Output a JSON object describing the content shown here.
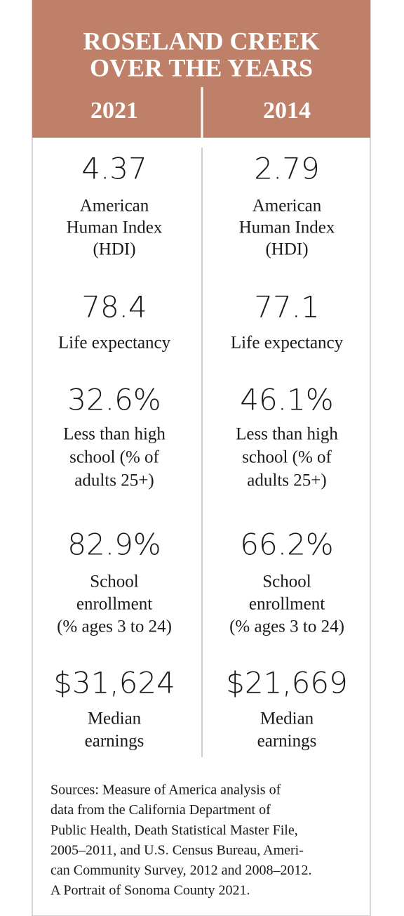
{
  "header": {
    "title": [
      "ROSELAND CREEK",
      "OVER THE YEARS"
    ]
  },
  "columns": [
    {
      "year": "2021",
      "stats": [
        {
          "value": "4.37",
          "label": [
            "American",
            "Human Index",
            "(HDI)"
          ]
        },
        {
          "value": "78.4",
          "label": [
            "Life expectancy"
          ]
        },
        {
          "value": "32.6%",
          "label": [
            "Less than high",
            "school (% of",
            "adults 25+)"
          ]
        },
        {
          "value": "82.9%",
          "label": [
            "School",
            "enrollment",
            "(% ages 3 to 24)"
          ]
        },
        {
          "value": "$31,624",
          "label": [
            "Median",
            "earnings"
          ]
        }
      ]
    },
    {
      "year": "2014",
      "stats": [
        {
          "value": "2.79",
          "label": [
            "American",
            "Human Index",
            "(HDI)"
          ]
        },
        {
          "value": "77.1",
          "label": [
            "Life expectancy"
          ]
        },
        {
          "value": "46.1%",
          "label": [
            "Less than high",
            "school (% of",
            "adults 25+)"
          ]
        },
        {
          "value": "66.2%",
          "label": [
            "School",
            "enrollment",
            "(% ages 3 to 24)"
          ]
        },
        {
          "value": "$21,669",
          "label": [
            "Median",
            "earnings"
          ]
        }
      ]
    }
  ],
  "sources": [
    "Sources: Measure of America analysis of",
    "data from the California Department of",
    "Public Health, Death Statistical Master File,",
    "2005–2011, and U.S. Census Bureau, Ameri-",
    "can Community Survey, 2012 and 2008–2012.",
    "A Portrait of Sonoma County 2021."
  ]
}
